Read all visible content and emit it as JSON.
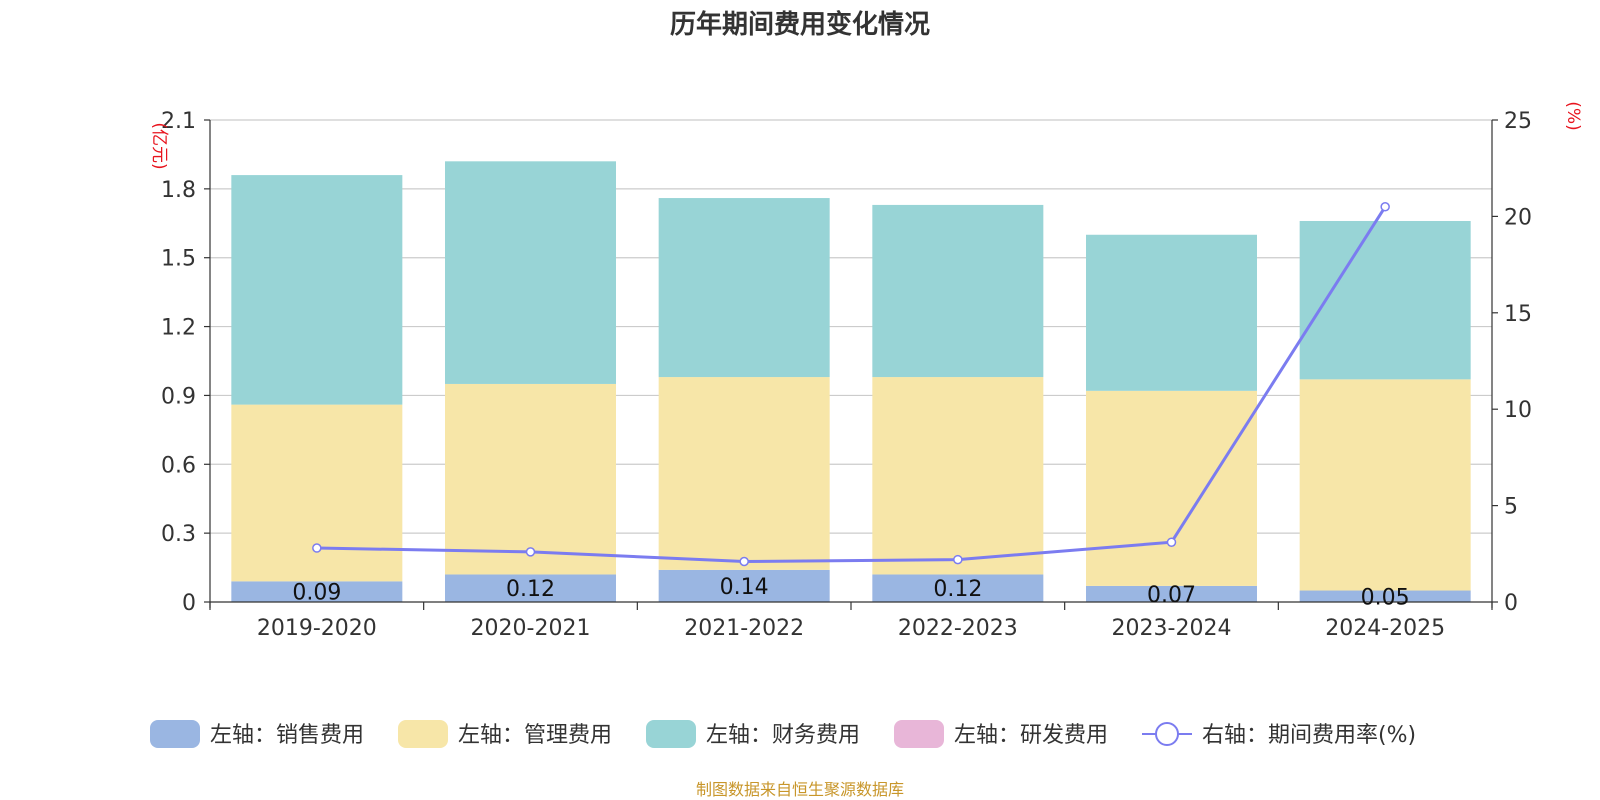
{
  "chart_data": {
    "type": "bar",
    "title": "历年期间费用变化情况",
    "categories": [
      "2019-2020",
      "2020-2021",
      "2021-2022",
      "2022-2023",
      "2023-2024",
      "2024-2025"
    ],
    "left_axis": {
      "unit": "(亿元)",
      "ylim": [
        0,
        2.1
      ],
      "ticks": [
        "0",
        "0.3",
        "0.6",
        "0.9",
        "1.2",
        "1.5",
        "1.8",
        "2.1"
      ]
    },
    "right_axis": {
      "unit": "(%)",
      "ylim": [
        0,
        25
      ],
      "ticks": [
        "0",
        "5",
        "10",
        "15",
        "20",
        "25"
      ]
    },
    "grid": true,
    "legend_position": "bottom",
    "series": [
      {
        "name": "左轴：销售费用",
        "axis": "left",
        "kind": "bar",
        "color": "#9ab6e2",
        "values": [
          0.09,
          0.12,
          0.14,
          0.12,
          0.07,
          0.05
        ],
        "labels": [
          "0.09",
          "0.12",
          "0.14",
          "0.12",
          "0.07",
          "0.05"
        ]
      },
      {
        "name": "左轴：管理费用",
        "axis": "left",
        "kind": "bar",
        "color": "#f7e6a8",
        "values": [
          0.77,
          0.83,
          0.84,
          0.86,
          0.85,
          0.92
        ]
      },
      {
        "name": "左轴：财务费用",
        "axis": "left",
        "kind": "bar",
        "color": "#98d4d6",
        "values": [
          1.0,
          0.97,
          0.78,
          0.75,
          0.68,
          0.69
        ]
      },
      {
        "name": "左轴：研发费用",
        "axis": "left",
        "kind": "bar",
        "color": "#e8b6d8",
        "values": [
          0,
          0,
          0,
          0,
          0,
          0
        ]
      },
      {
        "name": "右轴：期间费用率(%)",
        "axis": "right",
        "kind": "line",
        "color": "#7b7cf0",
        "values": [
          2.8,
          2.6,
          2.1,
          2.2,
          3.1,
          20.5
        ]
      }
    ],
    "source": "制图数据来自恒生聚源数据库"
  }
}
